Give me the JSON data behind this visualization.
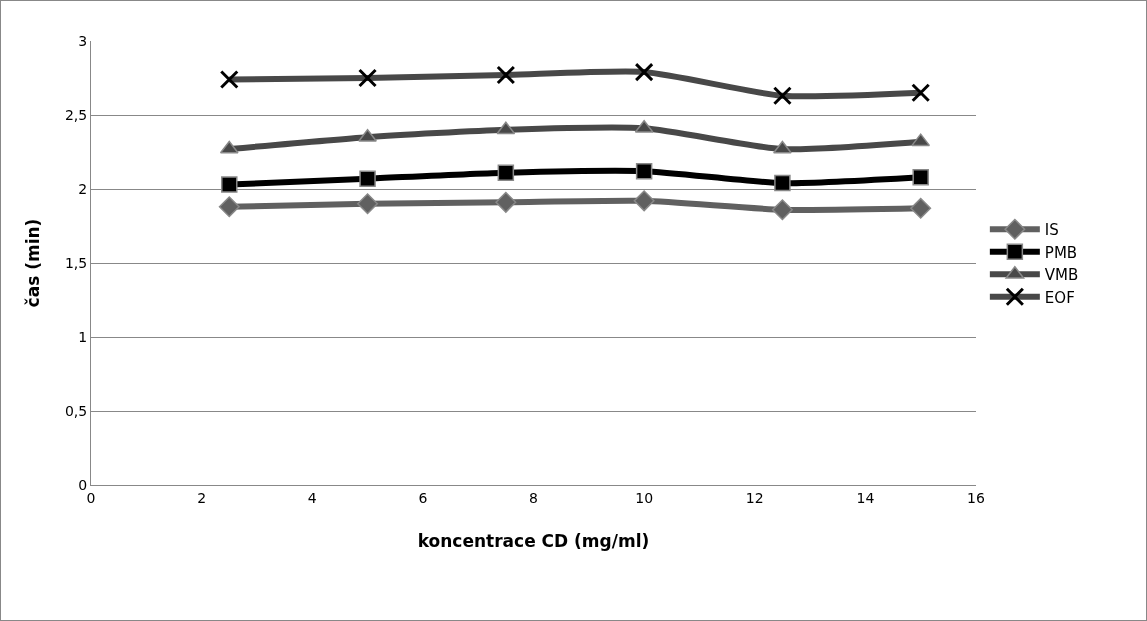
{
  "chart_data": {
    "type": "line",
    "xlabel": "koncentrace CD (mg/ml)",
    "ylabel": "čas (min)",
    "x": [
      2.5,
      5,
      7.5,
      10,
      12.5,
      15
    ],
    "series": [
      {
        "name": "IS",
        "color": "#606060",
        "marker": "diamond",
        "values": [
          1.88,
          1.9,
          1.91,
          1.92,
          1.86,
          1.87
        ]
      },
      {
        "name": "PMB",
        "color": "#000000",
        "marker": "square",
        "values": [
          2.03,
          2.07,
          2.11,
          2.12,
          2.04,
          2.08
        ]
      },
      {
        "name": "VMB",
        "color": "#484848",
        "marker": "triangle",
        "values": [
          2.27,
          2.35,
          2.4,
          2.41,
          2.27,
          2.32
        ]
      },
      {
        "name": "EOF",
        "color": "#484848",
        "marker": "cross",
        "values": [
          2.74,
          2.75,
          2.77,
          2.79,
          2.63,
          2.65
        ]
      }
    ],
    "xlim": [
      0,
      16
    ],
    "xticks": [
      0,
      2,
      4,
      6,
      8,
      10,
      12,
      14,
      16
    ],
    "ylim": [
      0,
      3
    ],
    "yticks": [
      {
        "value": 0,
        "label": "0"
      },
      {
        "value": 0.5,
        "label": "0,5"
      },
      {
        "value": 1,
        "label": "1"
      },
      {
        "value": 1.5,
        "label": "1,5"
      },
      {
        "value": 2,
        "label": "2"
      },
      {
        "value": 2.5,
        "label": "2,5"
      },
      {
        "value": 3,
        "label": "3"
      }
    ],
    "grid": "y",
    "legend": "right",
    "line_style": "solid"
  }
}
